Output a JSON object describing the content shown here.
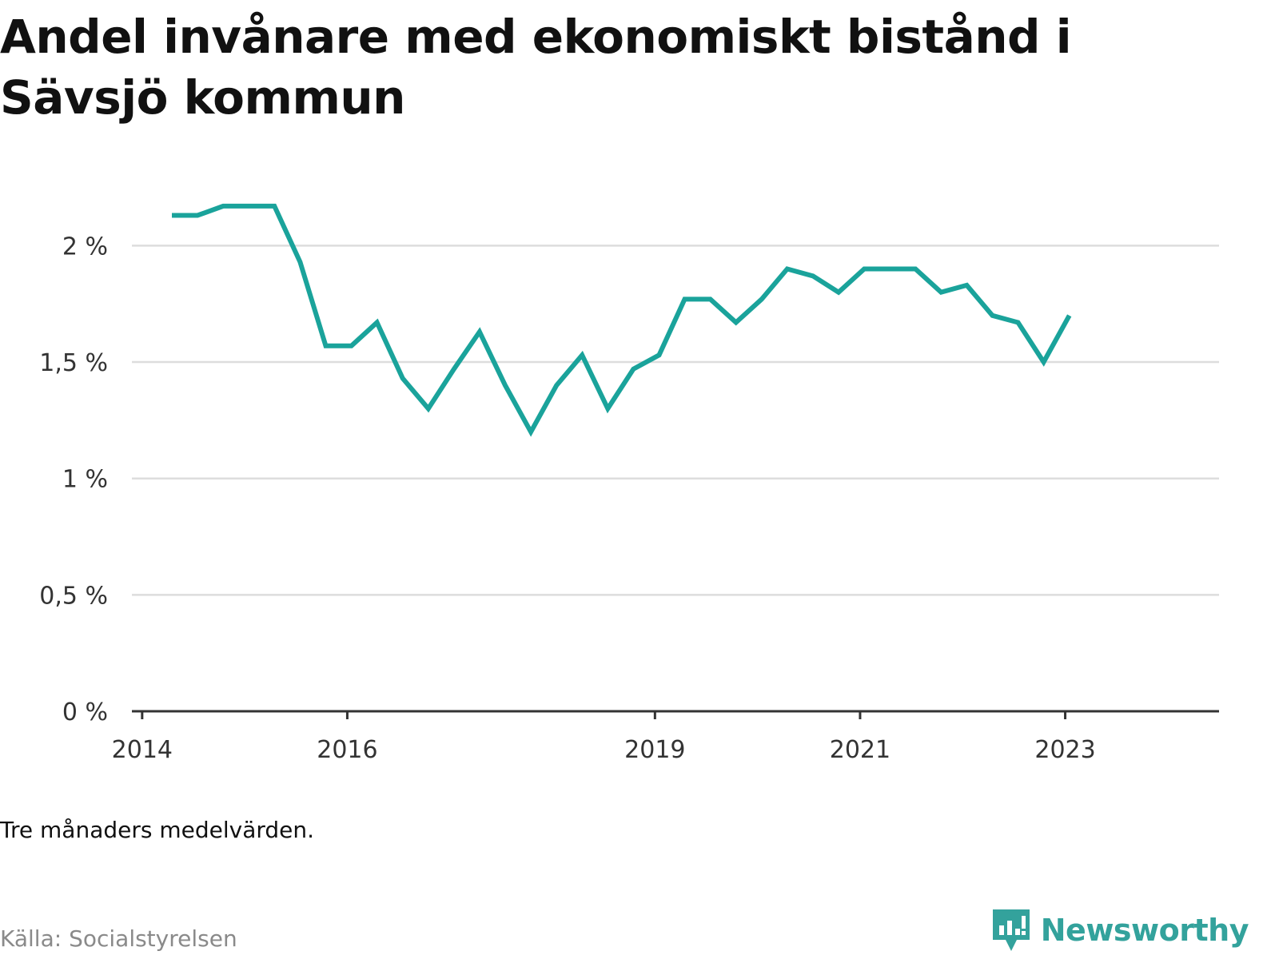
{
  "title": "Andel invånare med ekonomiskt bistånd i Sävsjö kommun",
  "note": "Tre månaders medelvärden.",
  "source": "Källa: Socialstyrelsen",
  "brand": {
    "name": "Newsworthy",
    "icon": "newsworthy-logo-icon",
    "color": "#33a29c"
  },
  "colors": {
    "line": "#1aa39b",
    "grid": "#dddddd",
    "axis": "#333333"
  },
  "chart_data": {
    "type": "line",
    "title": "Andel invånare med ekonomiskt bistånd i Sävsjö kommun",
    "xlabel": "",
    "ylabel": "",
    "y_ticks": [
      {
        "value": 0,
        "label": "0 %"
      },
      {
        "value": 0.5,
        "label": "0,5 %"
      },
      {
        "value": 1,
        "label": "1 %"
      },
      {
        "value": 1.5,
        "label": "1,5 %"
      },
      {
        "value": 2,
        "label": "2 %"
      }
    ],
    "x_ticks": [
      {
        "value": 2014.0,
        "label": "2014"
      },
      {
        "value": 2016.0,
        "label": "2016"
      },
      {
        "value": 2019.0,
        "label": "2019"
      },
      {
        "value": 2021.0,
        "label": "2021"
      },
      {
        "value": 2023.0,
        "label": "2023"
      }
    ],
    "xlim": [
      2013.9,
      2024.5
    ],
    "ylim": [
      0,
      2.3
    ],
    "grid": true,
    "series": [
      {
        "x": [
          2014.29,
          2014.54,
          2014.79,
          2015.04,
          2015.29,
          2015.54,
          2015.79,
          2016.04,
          2016.29,
          2016.54,
          2016.79,
          2017.04,
          2017.29,
          2017.54,
          2017.79,
          2018.04,
          2018.29,
          2018.54,
          2018.79,
          2019.04,
          2019.29,
          2019.54,
          2019.79,
          2020.04,
          2020.29,
          2020.54,
          2020.79,
          2021.04,
          2021.29,
          2021.54,
          2021.79,
          2022.04,
          2022.29,
          2022.54,
          2022.79,
          2023.04
        ],
        "y": [
          2.13,
          2.13,
          2.17,
          2.17,
          2.17,
          1.93,
          1.57,
          1.57,
          1.67,
          1.43,
          1.3,
          1.47,
          1.63,
          1.4,
          1.2,
          1.4,
          1.53,
          1.3,
          1.47,
          1.53,
          1.77,
          1.77,
          1.67,
          1.77,
          1.9,
          1.87,
          1.8,
          1.9,
          1.9,
          1.9,
          1.8,
          1.83,
          1.7,
          1.67,
          1.5,
          1.7
        ]
      }
    ]
  }
}
